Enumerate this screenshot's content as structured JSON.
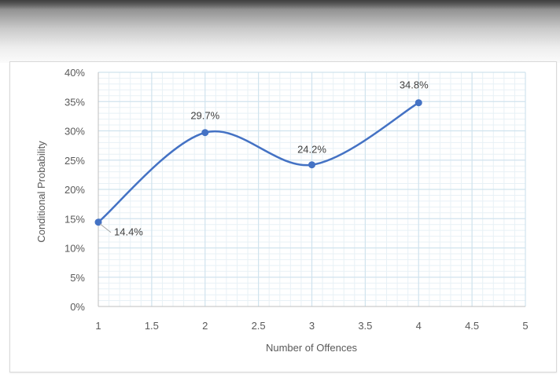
{
  "chart_data": {
    "type": "line",
    "title": "",
    "xlabel": "Number of Offences",
    "ylabel": "Conditional Probability",
    "xlim": [
      1,
      5
    ],
    "ylim": [
      0,
      40
    ],
    "x_ticks": [
      "1",
      "1.5",
      "2",
      "2.5",
      "3",
      "3.5",
      "4",
      "4.5",
      "5"
    ],
    "y_ticks": [
      "0%",
      "5%",
      "10%",
      "15%",
      "20%",
      "25%",
      "30%",
      "35%",
      "40%"
    ],
    "grid": true,
    "smooth": true,
    "line_color": "#4472c4",
    "grid_major_color": "#d0e3ee",
    "grid_minor_color": "#e8f1f6",
    "series": [
      {
        "x": [
          1,
          2,
          3,
          4
        ],
        "y": [
          14.4,
          29.7,
          24.2,
          34.8
        ],
        "labels": [
          "14.4%",
          "29.7%",
          "24.2%",
          "34.8%"
        ]
      }
    ]
  }
}
